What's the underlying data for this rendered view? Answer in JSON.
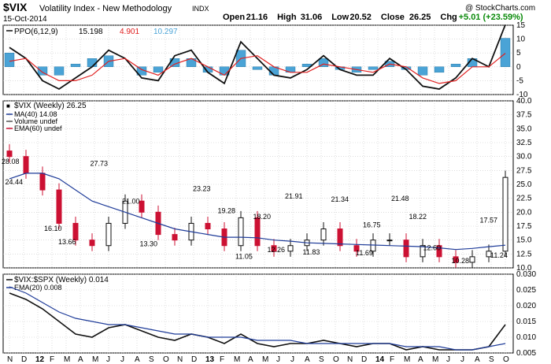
{
  "header": {
    "symbol": "$VIX",
    "name": "Volatility Index - New Methodology",
    "exchange": "INDX",
    "date": "15-Oct-2014",
    "copyright": "@ StockCharts.com",
    "quote": [
      {
        "label": "Open",
        "value": "21.16"
      },
      {
        "label": "High",
        "value": "31.06"
      },
      {
        "label": "Low",
        "value": "20.52"
      },
      {
        "label": "Close",
        "value": "26.25"
      },
      {
        "label": "Chg",
        "value": "+5.01 (+23.59%)"
      }
    ],
    "chg_color": "#0a8a0a"
  },
  "colors": {
    "up": "#111111",
    "down": "#cc1133",
    "hist": "#4aa3d6",
    "ma": "#1f3c99",
    "signal": "#e02020",
    "grid": "#c8c8c8",
    "text": "#000000"
  },
  "x_axis": {
    "labels": [
      "N",
      "D",
      "12",
      "F",
      "M",
      "A",
      "M",
      "J",
      "J",
      "A",
      "S",
      "O",
      "N",
      "D",
      "13",
      "F",
      "M",
      "A",
      "M",
      "J",
      "J",
      "A",
      "S",
      "O",
      "N",
      "D",
      "14",
      "F",
      "M",
      "A",
      "M",
      "J",
      "J",
      "A",
      "S",
      "O"
    ],
    "bold": [
      "12",
      "13",
      "14"
    ]
  },
  "chart_data": [
    {
      "type": "line",
      "panel": "ppo",
      "title": "PPO(6,12,9)",
      "legend": [
        "15.198",
        "4.901",
        "10.297"
      ],
      "ylim": [
        -10,
        15
      ],
      "yticks": [
        -10,
        -5,
        0,
        5,
        10,
        15
      ],
      "x": [
        0,
        5,
        10,
        15,
        20,
        25,
        30,
        35,
        40,
        45,
        50,
        55,
        60,
        65,
        70,
        75,
        80,
        85,
        90,
        95,
        100,
        105,
        110,
        115,
        120,
        125,
        130,
        135,
        140,
        145,
        150
      ],
      "series": [
        {
          "role": "ppo",
          "values": [
            7,
            3,
            -5,
            -8,
            -4,
            0,
            6,
            3,
            -4,
            -5,
            4,
            6,
            -2,
            -6,
            9,
            3,
            -3,
            -4,
            -1,
            4,
            -1,
            -3,
            -3,
            3,
            -1,
            -7,
            -8,
            -4,
            3,
            0,
            15.2
          ]
        },
        {
          "role": "signal",
          "values": [
            2,
            3,
            -2,
            -5,
            -5,
            -3,
            2,
            3,
            -1,
            -3,
            1,
            3,
            0,
            -3,
            3,
            4,
            0,
            -2,
            -2,
            1,
            0,
            -1,
            -2,
            1,
            0,
            -4,
            -6,
            -5,
            0,
            0,
            4.9
          ]
        },
        {
          "role": "histogram",
          "values": [
            5,
            0,
            -3,
            -3,
            1,
            3,
            4,
            0,
            -3,
            -2,
            3,
            3,
            -2,
            -3,
            6,
            -1,
            -3,
            -2,
            1,
            3,
            -1,
            -2,
            -1,
            2,
            -1,
            -3,
            -2,
            1,
            3,
            0,
            10.3
          ]
        }
      ]
    },
    {
      "type": "candlestick",
      "panel": "price",
      "title": "$VIX (Weekly) 26.25",
      "legend": [
        "MA(40) 14.08",
        "Volume undef",
        "EMA(60) undef"
      ],
      "ylim": [
        10,
        40
      ],
      "yticks": [
        10.0,
        12.5,
        15.0,
        17.5,
        20.0,
        22.5,
        25.0,
        27.5,
        30.0,
        32.5,
        35.0,
        37.5,
        40.0
      ],
      "x": [
        0,
        5,
        10,
        15,
        20,
        25,
        30,
        35,
        40,
        45,
        50,
        55,
        60,
        65,
        70,
        75,
        80,
        85,
        90,
        95,
        100,
        105,
        110,
        115,
        120,
        125,
        130,
        135,
        140,
        145,
        150
      ],
      "close": [
        30,
        27,
        24,
        18,
        15,
        14,
        18,
        22,
        20,
        16,
        15,
        18,
        17,
        14,
        19,
        14,
        13,
        14,
        15,
        17,
        14,
        13,
        15,
        15,
        12,
        14,
        12,
        11,
        12,
        13,
        26.25
      ],
      "ma40": [
        26,
        27,
        27,
        26,
        24,
        22,
        21,
        20,
        19,
        18,
        17,
        16.5,
        16,
        15.5,
        15.5,
        15.4,
        15,
        14.8,
        14.5,
        14.4,
        14.3,
        14.2,
        14.1,
        14,
        13.9,
        13.8,
        13.6,
        13.3,
        13.5,
        13.8,
        14.08
      ],
      "annotations": [
        {
          "x": 0,
          "value": 28.08
        },
        {
          "x": 1,
          "value": 24.44
        },
        {
          "x": 12,
          "value": 16.1
        },
        {
          "x": 16,
          "value": 13.66
        },
        {
          "x": 25,
          "value": 27.73
        },
        {
          "x": 34,
          "value": 21.0
        },
        {
          "x": 39,
          "value": 13.3
        },
        {
          "x": 54,
          "value": 23.23
        },
        {
          "x": 61,
          "value": 19.28
        },
        {
          "x": 66,
          "value": 11.05
        },
        {
          "x": 71,
          "value": 18.2
        },
        {
          "x": 75,
          "value": 12.26
        },
        {
          "x": 80,
          "value": 21.91
        },
        {
          "x": 85,
          "value": 11.83
        },
        {
          "x": 93,
          "value": 21.34
        },
        {
          "x": 102,
          "value": 16.75
        },
        {
          "x": 100,
          "value": 11.69
        },
        {
          "x": 110,
          "value": 21.48
        },
        {
          "x": 115,
          "value": 18.22
        },
        {
          "x": 119,
          "value": 12.6
        },
        {
          "x": 127,
          "value": 10.28
        },
        {
          "x": 135,
          "value": 17.57
        },
        {
          "x": 138,
          "value": 11.24
        }
      ]
    },
    {
      "type": "line",
      "panel": "ratio",
      "title": "$VIX:$SPX (Weekly) 0.014",
      "legend": [
        "EMA(20) 0.008"
      ],
      "ylim": [
        0.005,
        0.03
      ],
      "yticks": [
        0.005,
        0.01,
        0.015,
        0.02,
        0.025,
        0.03
      ],
      "x": [
        0,
        5,
        10,
        15,
        20,
        25,
        30,
        35,
        40,
        45,
        50,
        55,
        60,
        65,
        70,
        75,
        80,
        85,
        90,
        95,
        100,
        105,
        110,
        115,
        120,
        125,
        130,
        135,
        140,
        145,
        150
      ],
      "series": [
        {
          "role": "ratio",
          "values": [
            0.024,
            0.022,
            0.019,
            0.015,
            0.011,
            0.01,
            0.013,
            0.014,
            0.012,
            0.01,
            0.009,
            0.011,
            0.01,
            0.008,
            0.011,
            0.008,
            0.007,
            0.008,
            0.008,
            0.009,
            0.008,
            0.007,
            0.008,
            0.008,
            0.006,
            0.007,
            0.006,
            0.006,
            0.006,
            0.007,
            0.014
          ]
        },
        {
          "role": "ema20",
          "values": [
            0.026,
            0.024,
            0.021,
            0.018,
            0.016,
            0.015,
            0.014,
            0.014,
            0.013,
            0.012,
            0.011,
            0.011,
            0.01,
            0.01,
            0.01,
            0.009,
            0.009,
            0.009,
            0.008,
            0.008,
            0.008,
            0.008,
            0.008,
            0.008,
            0.007,
            0.007,
            0.007,
            0.006,
            0.006,
            0.007,
            0.008
          ]
        }
      ]
    }
  ]
}
